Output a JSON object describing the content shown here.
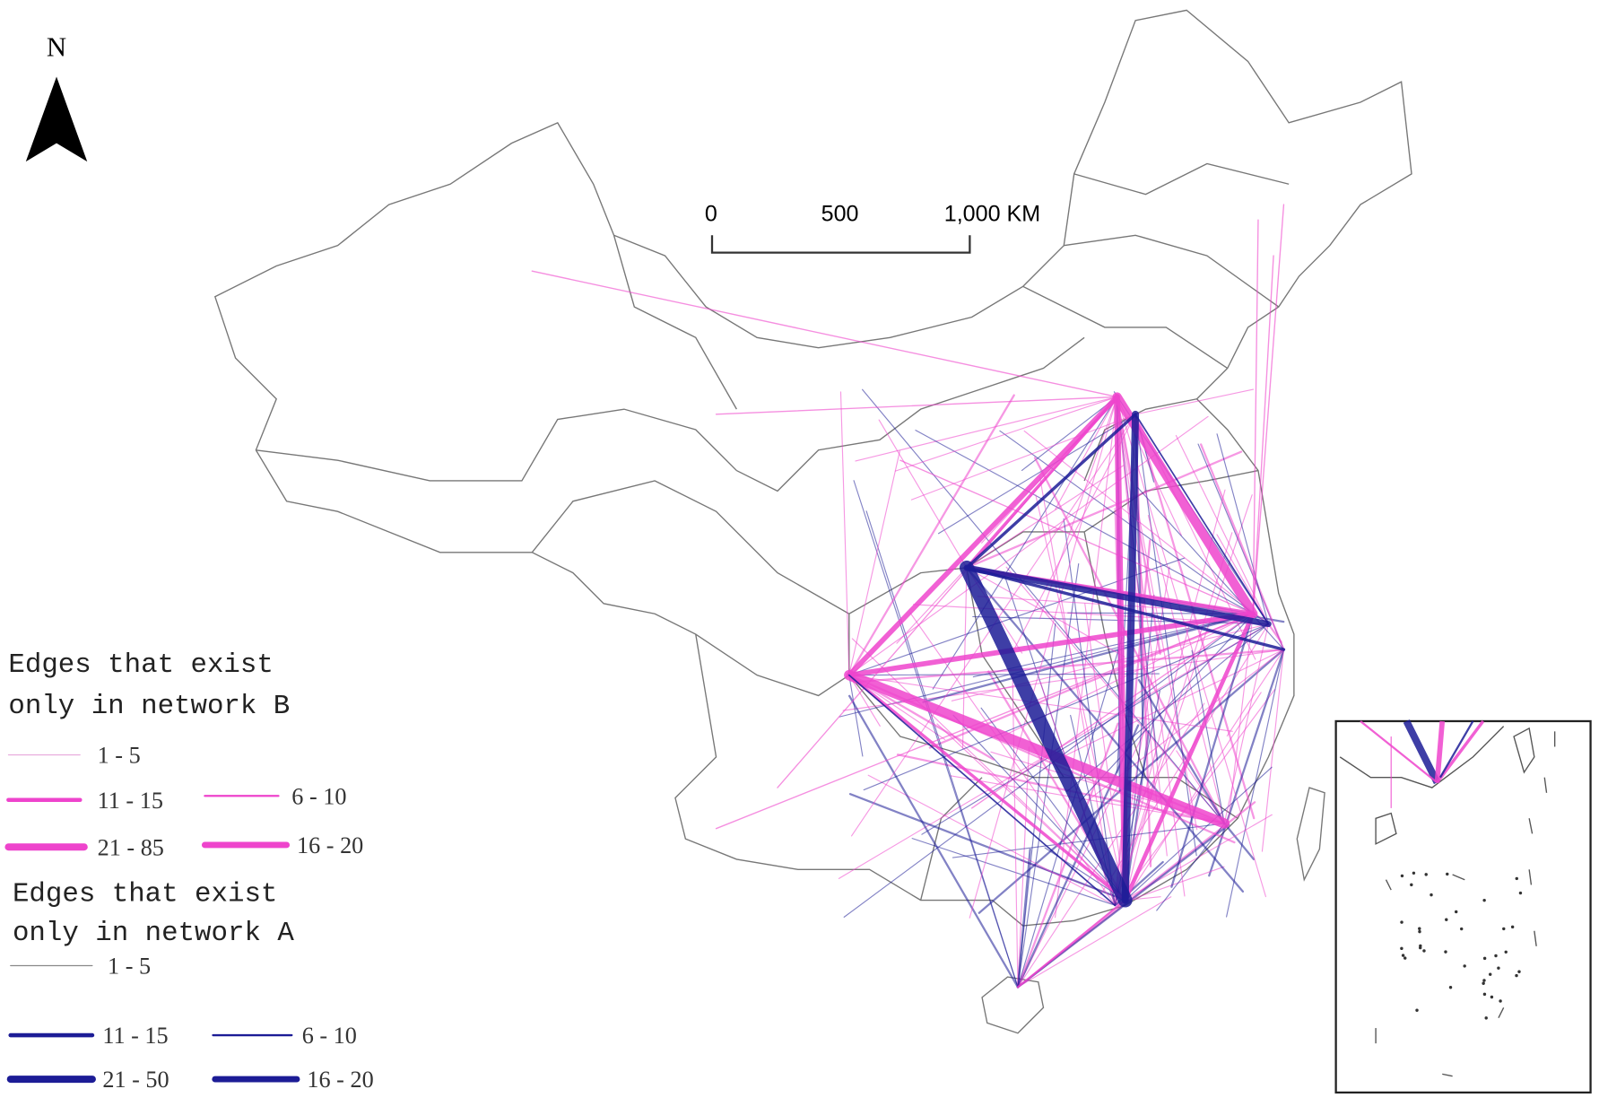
{
  "north_arrow": {
    "label": "N"
  },
  "scale_bar": {
    "labels": [
      "0",
      "500",
      "1,000 KM"
    ]
  },
  "legend": {
    "groups": [
      {
        "title": [
          "Edges that exist",
          "only in network B"
        ],
        "color": "#ee44cc",
        "items": [
          "1 - 5",
          "11 - 15",
          "6 - 10",
          "21 - 85",
          "16 - 20"
        ]
      },
      {
        "title": [
          "Edges that exist",
          "only in network A"
        ],
        "color": "#1c1c96",
        "items": [
          "1 - 5",
          "11 - 15",
          "6 - 10",
          "21 - 50",
          "16 - 20"
        ]
      }
    ]
  }
}
